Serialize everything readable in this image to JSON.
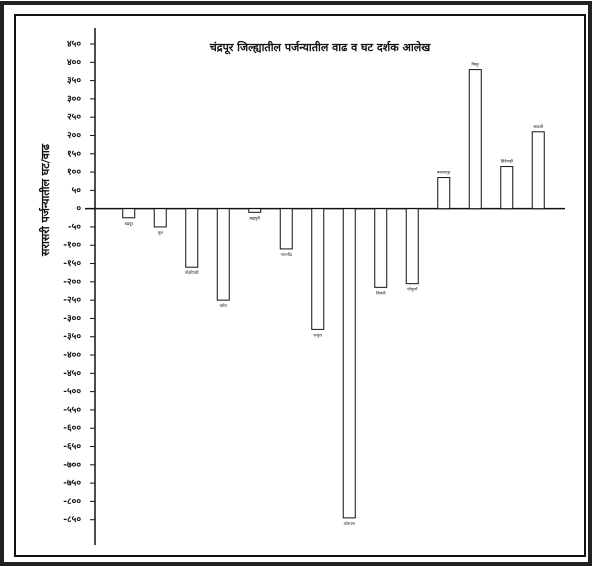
{
  "chart_data": {
    "type": "bar",
    "title": "चंद्रपूर जिल्ह्यातील पर्जन्यातील वाढ व घट दर्शक आलेख",
    "y_label": "सरासरी पर्जन्यातील घट/वाढ",
    "categories": [
      "चंद्रपूर",
      "मूल",
      "गोंडपिपरी",
      "वरोरा",
      "ब्रह्मपुरी",
      "नागभीड",
      "राजुरा",
      "कोरपना",
      "जिवती",
      "पोंभुर्णा",
      "बल्लारपूर",
      "चिमूर",
      "सिंदेवाही",
      "सावली"
    ],
    "values": [
      -25,
      -50,
      -160,
      -250,
      -10,
      -110,
      -330,
      -845,
      -215,
      -205,
      85,
      380,
      115,
      210
    ],
    "color": "#ffffff",
    "ylim": [
      -900,
      480
    ],
    "yticks": [
      {
        "value": 450,
        "label": "४५०"
      },
      {
        "value": 400,
        "label": "४००"
      },
      {
        "value": 350,
        "label": "३५०"
      },
      {
        "value": 300,
        "label": "३००"
      },
      {
        "value": 250,
        "label": "२५०"
      },
      {
        "value": 200,
        "label": "२००"
      },
      {
        "value": 150,
        "label": "१५०"
      },
      {
        "value": 100,
        "label": "१००"
      },
      {
        "value": 50,
        "label": "५०"
      },
      {
        "value": 0,
        "label": "०"
      },
      {
        "value": -50,
        "label": "-५०"
      },
      {
        "value": -100,
        "label": "-१००"
      },
      {
        "value": -150,
        "label": "-१५०"
      },
      {
        "value": -200,
        "label": "-२००"
      },
      {
        "value": -250,
        "label": "-२५०"
      },
      {
        "value": -300,
        "label": "-३००"
      },
      {
        "value": -350,
        "label": "-३५०"
      },
      {
        "value": -400,
        "label": "-४००"
      },
      {
        "value": -450,
        "label": "-४५०"
      },
      {
        "value": -500,
        "label": "-५००"
      },
      {
        "value": -550,
        "label": "-५५०"
      },
      {
        "value": -600,
        "label": "-६००"
      },
      {
        "value": -650,
        "label": "-६५०"
      },
      {
        "value": -700,
        "label": "-७००"
      },
      {
        "value": -750,
        "label": "-७५०"
      },
      {
        "value": -800,
        "label": "-८००"
      },
      {
        "value": -850,
        "label": "-८५०"
      }
    ],
    "grid": false
  }
}
